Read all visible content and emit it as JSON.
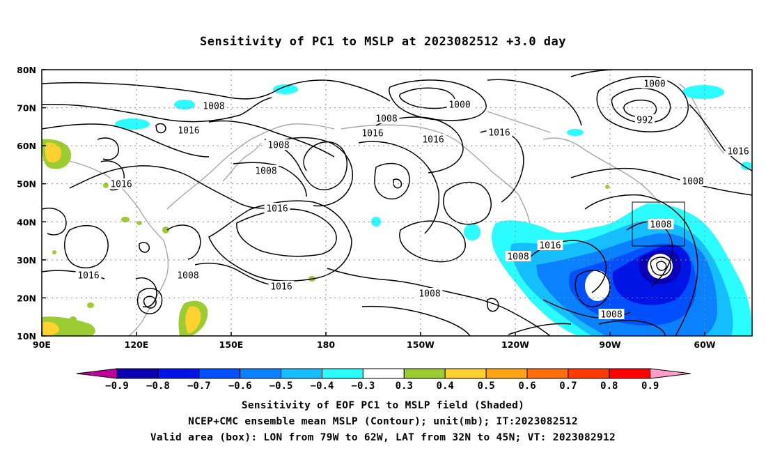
{
  "title": "Sensitivity of PC1 to MSLP at 2023082512 +3.0 day",
  "map": {
    "lat_labels": [
      "80N",
      "70N",
      "60N",
      "50N",
      "40N",
      "30N",
      "20N",
      "10N"
    ],
    "lon_labels": [
      "90E",
      "120E",
      "150E",
      "180",
      "150W",
      "120W",
      "90W",
      "60W"
    ],
    "valid_box": {
      "lon_from": "79W",
      "lon_to": "62W",
      "lat_from": "32N",
      "lat_to": "45N"
    },
    "contour_labels": [
      "1008",
      "1000",
      "1000",
      "992",
      "1016",
      "1016",
      "1008",
      "1008",
      "1016",
      "1016",
      "1016",
      "1008",
      "1008",
      "1016",
      "1016",
      "1008",
      "1016",
      "1008",
      "1016",
      "1008",
      "1016",
      "1008",
      "1008"
    ]
  },
  "colorbar": {
    "labels": [
      "-0.9",
      "-0.8",
      "-0.7",
      "-0.6",
      "-0.5",
      "-0.4",
      "-0.3",
      "0.3",
      "0.4",
      "0.5",
      "0.6",
      "0.7",
      "0.8",
      "0.9"
    ],
    "colors": [
      "#0a00b4",
      "#0014e6",
      "#0050ff",
      "#0a82ff",
      "#14beff",
      "#2afcff",
      "#ffffff",
      "#9bcc32",
      "#ffd232",
      "#ffa514",
      "#ff6e0a",
      "#ff3c00",
      "#ff0000"
    ],
    "under_color": "#c0009c",
    "over_color": "#ff9ec8"
  },
  "captions": {
    "line1": "Sensitivity of EOF PC1 to MSLP field (Shaded)",
    "line2": "NCEP+CMC ensemble mean MSLP (Contour); unit(mb); IT:2023082512",
    "line3": "Valid area (box): LON from 79W to 62W, LAT from 32N to 45N; VT: 2023082912"
  }
}
